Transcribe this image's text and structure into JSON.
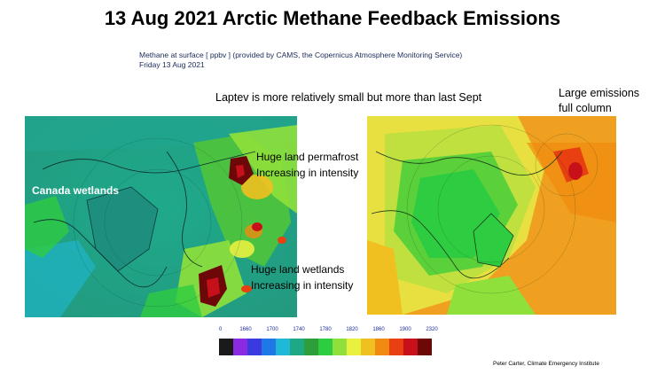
{
  "title": "13 Aug 2021 Arctic Methane Feedback Emissions",
  "subtitle_line1": "Methane at surface [ ppbv ] (provided by CAMS, the Copernicus Atmosphere Monitoring Service)",
  "subtitle_line2": "Friday 13 Aug 2021",
  "note_laptev": "Laptev is more relatively small but more than last Sept",
  "note_large_line1": "Large emissions",
  "note_large_line2": "full column",
  "annotation_permafrost_line1": "Huge land permafrost",
  "annotation_permafrost_line2": "Increasing in intensity",
  "annotation_wetlands_line1": "Huge land wetlands",
  "annotation_wetlands_line2": "Increasing in intensity",
  "annotation_canada": "Canada wetlands",
  "scale_labels": [
    "0",
    "1660",
    "1700",
    "1740",
    "1780",
    "1820",
    "1860",
    "1900",
    "2320"
  ],
  "scale_colors": [
    "#1a1a1a",
    "#8a2be2",
    "#3a3adf",
    "#1e78e6",
    "#1fb8d8",
    "#1ea886",
    "#2e9e3a",
    "#2ecc40",
    "#8fe03a",
    "#e8f040",
    "#f0c020",
    "#f08a10",
    "#e84010",
    "#c8101a",
    "#6e0808"
  ],
  "credit": "Peter Carter, Climate Emergency Institute"
}
